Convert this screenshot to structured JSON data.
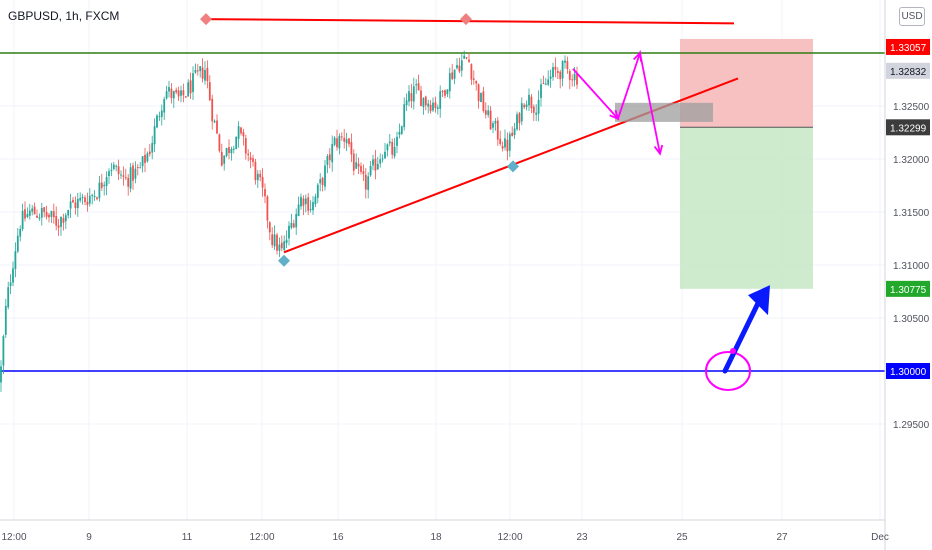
{
  "header": {
    "symbol": "GBPUSD, 1h, FXCM",
    "currency_button": "USD"
  },
  "colors": {
    "bull": "#26a69a",
    "bear": "#ef5350",
    "resistance_line": "#ff0000",
    "horizontal_green": "#2e7d12",
    "horizontal_blue": "#0000ff",
    "magenta": "#ff00ff",
    "stop_zone": "#f7b6b6",
    "target_zone": "#c5e8c5",
    "pivot_red": "#f08080",
    "pivot_blue": "#5fb0c8",
    "arrow_blue": "#0a1aff"
  },
  "chart_data": {
    "type": "candlestick",
    "y_axis": {
      "ticks": [
        "1.32500",
        "1.32000",
        "1.31500",
        "1.31000",
        "1.30500",
        "1.29500"
      ],
      "tick_values": [
        1.325,
        1.32,
        1.315,
        1.31,
        1.305,
        1.295
      ],
      "ylim": [
        1.2935,
        1.3345
      ]
    },
    "x_axis": {
      "ticks": [
        "12:00",
        "9",
        "11",
        "12:00",
        "16",
        "18",
        "12:00",
        "23",
        "25",
        "27",
        "Dec"
      ]
    },
    "price_labels": [
      {
        "text": "1.33057",
        "value": 1.33057,
        "style": "red"
      },
      {
        "text": "1.32832",
        "value": 1.32832,
        "style": "gray"
      },
      {
        "text": "1.32299",
        "value": 1.32299,
        "style": "dark"
      },
      {
        "text": "1.30775",
        "value": 1.30775,
        "style": "green"
      },
      {
        "text": "1.30000",
        "value": 1.3,
        "style": "blue"
      }
    ],
    "horizontal_levels": [
      {
        "value": 1.33,
        "color": "green"
      },
      {
        "value": 1.3,
        "color": "blue"
      }
    ],
    "position_tool": {
      "entry": 1.32299,
      "stop": 1.33057,
      "target": 1.30775
    },
    "price_path": [
      [
        0,
        1.299
      ],
      [
        6,
        1.306
      ],
      [
        14,
        1.311
      ],
      [
        20,
        1.314
      ],
      [
        30,
        1.315
      ],
      [
        44,
        1.3148
      ],
      [
        58,
        1.314
      ],
      [
        70,
        1.3156
      ],
      [
        85,
        1.3162
      ],
      [
        98,
        1.317
      ],
      [
        110,
        1.3195
      ],
      [
        125,
        1.318
      ],
      [
        140,
        1.319
      ],
      [
        150,
        1.321
      ],
      [
        158,
        1.324
      ],
      [
        165,
        1.3265
      ],
      [
        180,
        1.3255
      ],
      [
        195,
        1.3275
      ],
      [
        205,
        1.3285
      ],
      [
        212,
        1.3245
      ],
      [
        222,
        1.32
      ],
      [
        238,
        1.3225
      ],
      [
        250,
        1.32
      ],
      [
        262,
        1.317
      ],
      [
        272,
        1.3125
      ],
      [
        282,
        1.3112
      ],
      [
        292,
        1.314
      ],
      [
        302,
        1.3165
      ],
      [
        312,
        1.3155
      ],
      [
        322,
        1.318
      ],
      [
        334,
        1.3215
      ],
      [
        347,
        1.3222
      ],
      [
        355,
        1.319
      ],
      [
        365,
        1.3175
      ],
      [
        375,
        1.3195
      ],
      [
        385,
        1.3212
      ],
      [
        395,
        1.3205
      ],
      [
        405,
        1.325
      ],
      [
        415,
        1.3265
      ],
      [
        425,
        1.3255
      ],
      [
        438,
        1.3252
      ],
      [
        448,
        1.3275
      ],
      [
        458,
        1.329
      ],
      [
        468,
        1.3295
      ],
      [
        478,
        1.3262
      ],
      [
        488,
        1.3238
      ],
      [
        497,
        1.3225
      ],
      [
        506,
        1.321
      ],
      [
        515,
        1.3228
      ],
      [
        525,
        1.326
      ],
      [
        535,
        1.325
      ],
      [
        545,
        1.327
      ],
      [
        555,
        1.3282
      ],
      [
        565,
        1.3285
      ],
      [
        575,
        1.3278
      ]
    ],
    "annotations": {
      "resistance_line": {
        "x": [
          204,
          734
        ],
        "y": [
          1.3332,
          1.3328
        ]
      },
      "support_trendline": {
        "x": [
          284,
          738
        ],
        "y": [
          1.3112,
          1.3276
        ]
      },
      "pivot_highs": [
        {
          "x": 206,
          "y": 1.3332
        },
        {
          "x": 466,
          "y": 1.3332
        }
      ],
      "pivot_lows": [
        {
          "x": 284,
          "y": 1.3104
        },
        {
          "x": 513,
          "y": 1.3193
        }
      ],
      "projection_path": [
        [
          573,
          1.3285
        ],
        [
          618,
          1.3238
        ],
        [
          640,
          1.33
        ],
        [
          660,
          1.3205
        ]
      ],
      "gray_box": {
        "x": [
          615,
          713
        ],
        "y": [
          1.3253,
          1.3235
        ]
      },
      "circle": {
        "x": 728,
        "y": 1.3
      },
      "arrow_up": {
        "from": [
          725,
          1.3
        ],
        "to": [
          770,
          1.3081
        ]
      }
    }
  }
}
